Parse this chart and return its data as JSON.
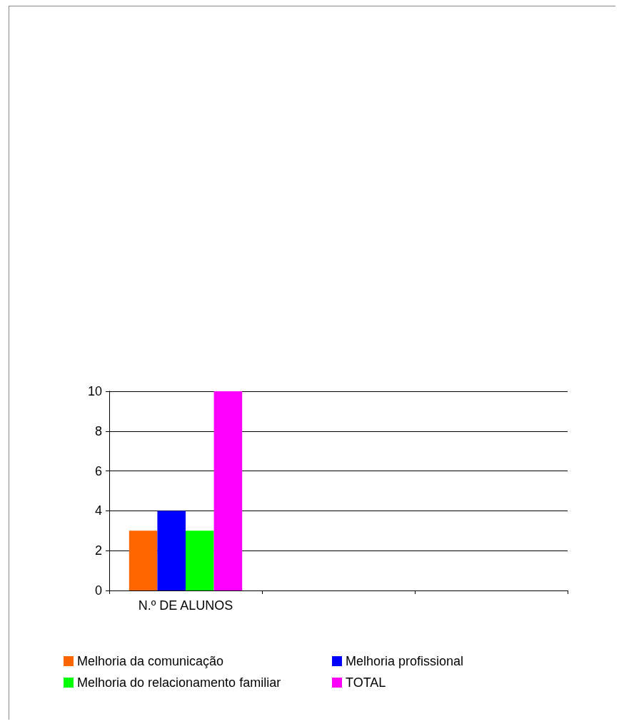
{
  "chart_data": {
    "type": "bar",
    "categories": [
      "N.º DE ALUNOS",
      null,
      null
    ],
    "series": [
      {
        "name": "Melhoria da comunicação",
        "color": "#ff6600",
        "values": [
          3,
          null,
          null
        ]
      },
      {
        "name": "Melhoria profissional",
        "color": "#0000ff",
        "values": [
          4,
          null,
          null
        ]
      },
      {
        "name": "Melhoria do relacionamento familiar",
        "color": "#00ff00",
        "values": [
          3,
          null,
          null
        ]
      },
      {
        "name": "TOTAL",
        "color": "#ff00ff",
        "values": [
          10,
          null,
          null
        ]
      }
    ],
    "ylim": [
      0,
      10
    ],
    "yticks": [
      0,
      2,
      4,
      6,
      8,
      10
    ],
    "grid": "y",
    "legend": "bottom"
  }
}
